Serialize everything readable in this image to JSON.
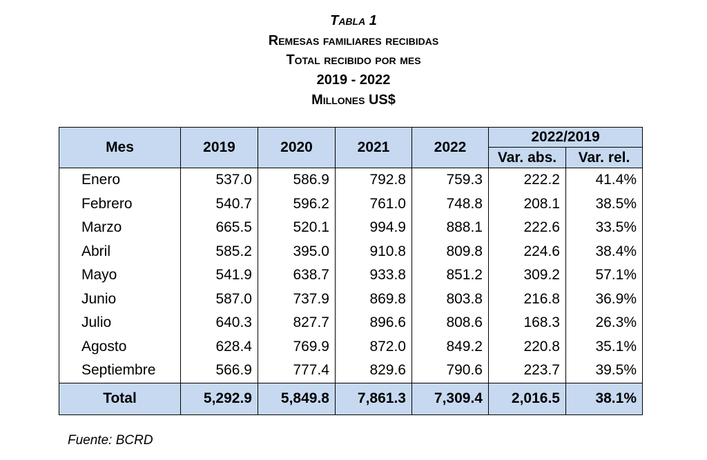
{
  "header": {
    "title": "Tabla 1",
    "lines": [
      "Remesas familiares recibidas",
      "Total recibido por mes",
      "2019 - 2022",
      "Millones US$"
    ]
  },
  "table": {
    "columns": [
      "Mes",
      "2019",
      "2020",
      "2021",
      "2022"
    ],
    "group": "2022/2019",
    "subcolumns": [
      "Var. abs.",
      "Var. rel."
    ],
    "rows": [
      [
        "Enero",
        "537.0",
        "586.9",
        "792.8",
        "759.3",
        "222.2",
        "41.4%"
      ],
      [
        "Febrero",
        "540.7",
        "596.2",
        "761.0",
        "748.8",
        "208.1",
        "38.5%"
      ],
      [
        "Marzo",
        "665.5",
        "520.1",
        "994.9",
        "888.1",
        "222.6",
        "33.5%"
      ],
      [
        "Abril",
        "585.2",
        "395.0",
        "910.8",
        "809.8",
        "224.6",
        "38.4%"
      ],
      [
        "Mayo",
        "541.9",
        "638.7",
        "933.8",
        "851.2",
        "309.2",
        "57.1%"
      ],
      [
        "Junio",
        "587.0",
        "737.9",
        "869.8",
        "803.8",
        "216.8",
        "36.9%"
      ],
      [
        "Julio",
        "640.3",
        "827.7",
        "896.6",
        "808.6",
        "168.3",
        "26.3%"
      ],
      [
        "Agosto",
        "628.4",
        "769.9",
        "872.0",
        "849.2",
        "220.8",
        "35.1%"
      ],
      [
        "Septiembre",
        "566.9",
        "777.4",
        "829.6",
        "790.6",
        "223.7",
        "39.5%"
      ]
    ],
    "total": [
      "Total",
      "5,292.9",
      "5,849.8",
      "7,861.3",
      "7,309.4",
      "2,016.5",
      "38.1%"
    ]
  },
  "source": "Fuente: BCRD"
}
